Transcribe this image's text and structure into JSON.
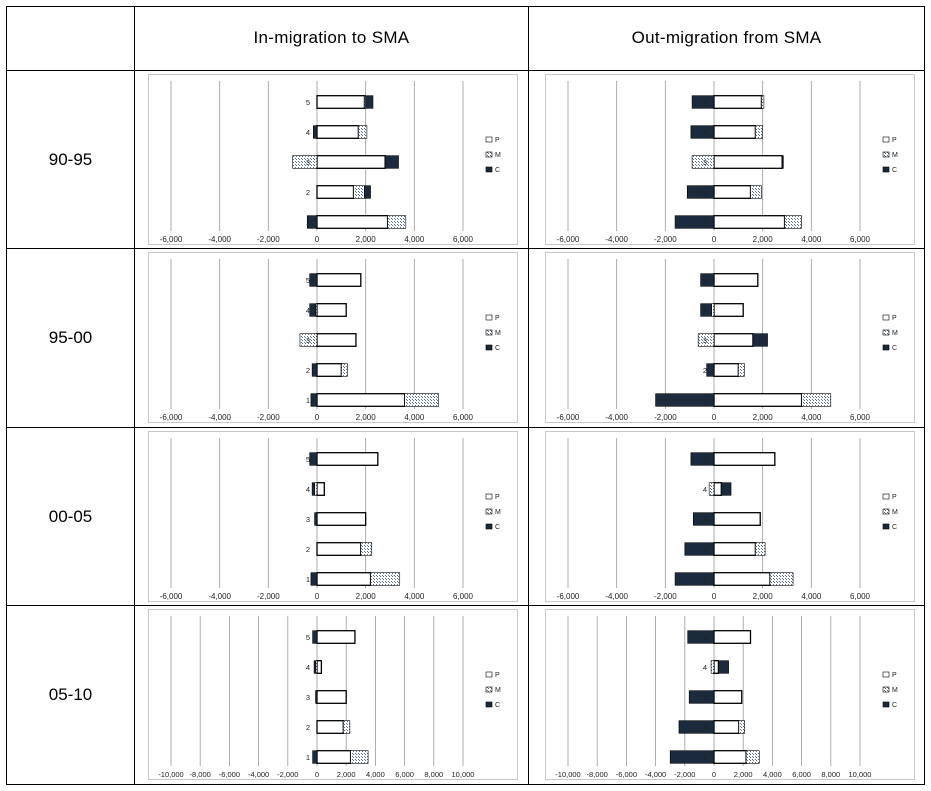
{
  "header": {
    "col1": "In-migration to SMA",
    "col2": "Out-migration from SMA"
  },
  "legend_labels": [
    "P",
    "M",
    "C"
  ],
  "colors": {
    "P": "#ffffff",
    "M": "#c8d4de",
    "C": "#1b2a3c",
    "stroke": "#000000",
    "gridline": "#9a9a9a"
  },
  "rows": [
    {
      "label": "90-95"
    },
    {
      "label": "95-00"
    },
    {
      "label": "00-05"
    },
    {
      "label": "05-10"
    }
  ],
  "chart_data": [
    {
      "type": "bar",
      "orientation": "horizontal",
      "stacked": true,
      "period": "90-95",
      "panel": "In-migration to SMA",
      "categories": [
        "1",
        "2",
        "3",
        "4",
        "5"
      ],
      "xlim": [
        -6000,
        6000
      ],
      "xticks": [
        -6000,
        -4000,
        -2000,
        0,
        2000,
        4000,
        6000
      ],
      "xtick_labels": [
        "-6,000",
        "-4,000",
        "-2,000",
        "0",
        "2,000",
        "4,000",
        "6,000"
      ],
      "legend": "right",
      "series": [
        {
          "name": "P",
          "values": [
            2900,
            1500,
            2800,
            1700,
            1950
          ]
        },
        {
          "name": "M",
          "values": [
            750,
            450,
            -1000,
            350,
            50
          ]
        },
        {
          "name": "C",
          "values": [
            -400,
            250,
            550,
            -150,
            300
          ]
        }
      ]
    },
    {
      "type": "bar",
      "orientation": "horizontal",
      "stacked": true,
      "period": "90-95",
      "panel": "Out-migration from SMA",
      "categories": [
        "1",
        "2",
        "3",
        "4",
        "5"
      ],
      "xlim": [
        -6000,
        6000
      ],
      "xticks": [
        -6000,
        -4000,
        -2000,
        0,
        2000,
        4000,
        6000
      ],
      "xtick_labels": [
        "-6,000",
        "-4,000",
        "-2,000",
        "0",
        "2,000",
        "4,000",
        "6,000"
      ],
      "legend": "right",
      "series": [
        {
          "name": "P",
          "values": [
            2900,
            1500,
            2800,
            1700,
            1950
          ]
        },
        {
          "name": "M",
          "values": [
            700,
            450,
            -900,
            300,
            100
          ]
        },
        {
          "name": "C",
          "values": [
            -1600,
            -1100,
            50,
            -950,
            -900
          ]
        }
      ]
    },
    {
      "type": "bar",
      "orientation": "horizontal",
      "stacked": true,
      "period": "95-00",
      "panel": "In-migration to SMA",
      "categories": [
        "1",
        "2",
        "3",
        "4",
        "5"
      ],
      "xlim": [
        -6000,
        6000
      ],
      "xticks": [
        -6000,
        -4000,
        -2000,
        0,
        2000,
        4000,
        6000
      ],
      "xtick_labels": [
        "-6,000",
        "-4,000",
        "-2,000",
        "0",
        "2,000",
        "4,000",
        "6,000"
      ],
      "legend": "right",
      "series": [
        {
          "name": "P",
          "values": [
            3600,
            1000,
            1600,
            1200,
            1800
          ]
        },
        {
          "name": "M",
          "values": [
            1400,
            250,
            -700,
            -50,
            0
          ]
        },
        {
          "name": "C",
          "values": [
            -250,
            -200,
            0,
            -250,
            -300
          ]
        }
      ]
    },
    {
      "type": "bar",
      "orientation": "horizontal",
      "stacked": true,
      "period": "95-00",
      "panel": "Out-migration from SMA",
      "categories": [
        "1",
        "2",
        "3",
        "4",
        "5"
      ],
      "xlim": [
        -6000,
        6000
      ],
      "xticks": [
        -6000,
        -4000,
        -2000,
        0,
        2000,
        4000,
        6000
      ],
      "xtick_labels": [
        "-6,000",
        "-4,000",
        "-2,000",
        "0",
        "2,000",
        "4,000",
        "6,000"
      ],
      "legend": "right",
      "series": [
        {
          "name": "P",
          "values": [
            3600,
            1000,
            1600,
            1200,
            1800
          ]
        },
        {
          "name": "M",
          "values": [
            1200,
            250,
            -650,
            -100,
            0
          ]
        },
        {
          "name": "C",
          "values": [
            -2400,
            -300,
            600,
            -450,
            -550
          ]
        }
      ]
    },
    {
      "type": "bar",
      "orientation": "horizontal",
      "stacked": true,
      "period": "00-05",
      "panel": "In-migration to SMA",
      "categories": [
        "1",
        "2",
        "3",
        "4",
        "5"
      ],
      "xlim": [
        -6000,
        6000
      ],
      "xticks": [
        -6000,
        -4000,
        -2000,
        0,
        2000,
        4000,
        6000
      ],
      "xtick_labels": [
        "-6,000",
        "-4,000",
        "-2,000",
        "0",
        "2,000",
        "4,000",
        "6,000"
      ],
      "legend": "right",
      "series": [
        {
          "name": "P",
          "values": [
            2200,
            1800,
            2000,
            300,
            2500
          ]
        },
        {
          "name": "M",
          "values": [
            1200,
            450,
            0,
            -100,
            0
          ]
        },
        {
          "name": "C",
          "values": [
            -250,
            0,
            -100,
            -100,
            -300
          ]
        }
      ]
    },
    {
      "type": "bar",
      "orientation": "horizontal",
      "stacked": true,
      "period": "00-05",
      "panel": "Out-migration from SMA",
      "categories": [
        "1",
        "2",
        "3",
        "4",
        "5"
      ],
      "xlim": [
        -6000,
        6000
      ],
      "xticks": [
        -6000,
        -4000,
        -2000,
        0,
        2000,
        4000,
        6000
      ],
      "xtick_labels": [
        "-6,000",
        "-4,000",
        "-2,000",
        "0",
        "2,000",
        "4,000",
        "6,000"
      ],
      "legend": "right",
      "series": [
        {
          "name": "P",
          "values": [
            2300,
            1700,
            1900,
            300,
            2500
          ]
        },
        {
          "name": "M",
          "values": [
            950,
            400,
            0,
            -200,
            0
          ]
        },
        {
          "name": "C",
          "values": [
            -1600,
            -1200,
            -850,
            400,
            -950
          ]
        }
      ]
    },
    {
      "type": "bar",
      "orientation": "horizontal",
      "stacked": true,
      "period": "05-10",
      "panel": "In-migration to SMA",
      "categories": [
        "1",
        "2",
        "3",
        "4",
        "5"
      ],
      "xlim": [
        -10000,
        10000
      ],
      "xticks": [
        -10000,
        -8000,
        -6000,
        -4000,
        -2000,
        0,
        2000,
        4000,
        6000,
        8000,
        10000
      ],
      "xtick_labels": [
        "-10,000",
        "-8,000",
        "-6,000",
        "-4,000",
        "-2,000",
        "0",
        "2,000",
        "4,000",
        "6,000",
        "8,000",
        "10,000"
      ],
      "legend": "right",
      "series": [
        {
          "name": "P",
          "values": [
            2300,
            1800,
            2000,
            300,
            2600
          ]
        },
        {
          "name": "M",
          "values": [
            1200,
            450,
            0,
            -100,
            0
          ]
        },
        {
          "name": "C",
          "values": [
            -300,
            0,
            -100,
            -100,
            -300
          ]
        }
      ]
    },
    {
      "type": "bar",
      "orientation": "horizontal",
      "stacked": true,
      "period": "05-10",
      "panel": "Out-migration from SMA",
      "categories": [
        "1",
        "2",
        "3",
        "4",
        "5"
      ],
      "xlim": [
        -10000,
        10000
      ],
      "xticks": [
        -10000,
        -8000,
        -6000,
        -4000,
        -2000,
        0,
        2000,
        4000,
        6000,
        8000,
        10000
      ],
      "xtick_labels": [
        "-10,000",
        "-8,000",
        "-6,000",
        "-4,000",
        "-2,000",
        "0",
        "2,000",
        "4,000",
        "6,000",
        "8,000",
        "10,000"
      ],
      "legend": "right",
      "series": [
        {
          "name": "P",
          "values": [
            2200,
            1700,
            1900,
            300,
            2500
          ]
        },
        {
          "name": "M",
          "values": [
            900,
            400,
            0,
            -200,
            0
          ]
        },
        {
          "name": "C",
          "values": [
            -3000,
            -2400,
            -1700,
            700,
            -1800
          ]
        }
      ]
    }
  ]
}
